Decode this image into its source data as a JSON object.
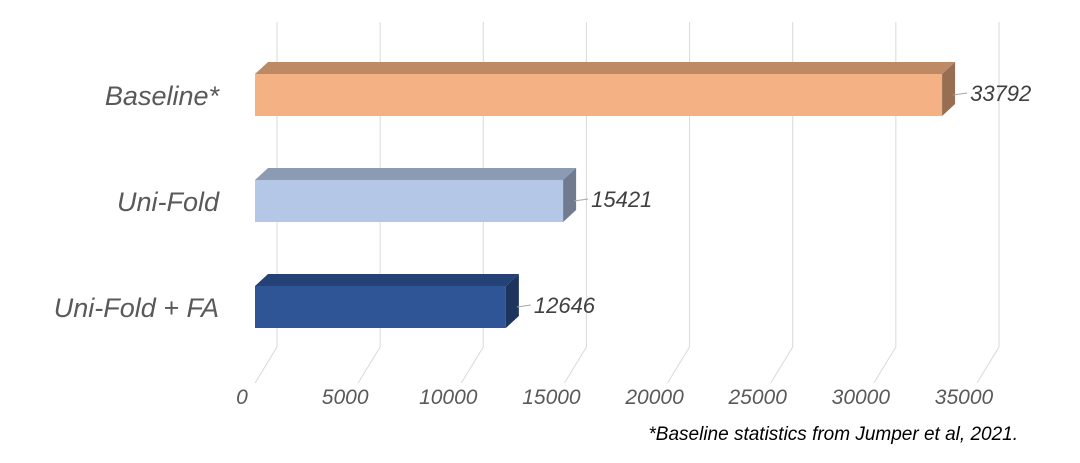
{
  "chart_data": {
    "type": "bar",
    "orientation": "horizontal",
    "style": "3d",
    "categories": [
      "Baseline*",
      "Uni-Fold",
      "Uni-Fold + FA"
    ],
    "values": [
      33792,
      15421,
      12646
    ],
    "data_labels": [
      "33792",
      "15421",
      "12646"
    ],
    "colors": [
      "#F4B183",
      "#B4C7E7",
      "#2F5597"
    ],
    "x_ticks": [
      "0",
      "5000",
      "10000",
      "15000",
      "20000",
      "25000",
      "30000",
      "35000"
    ],
    "xlim": [
      0,
      35000
    ],
    "grid": true,
    "title": "",
    "xlabel": "",
    "ylabel": ""
  },
  "footnote": "*Baseline statistics from Jumper et al, 2021."
}
